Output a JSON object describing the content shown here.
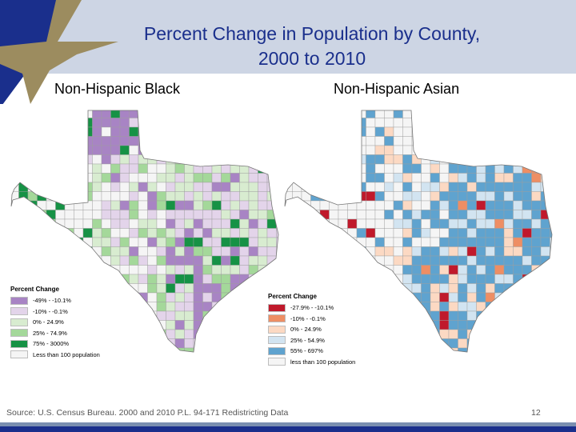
{
  "slide": {
    "title_line1": "Percent Change in Population by County,",
    "title_line2": "2000 to 2010",
    "page_number": "12",
    "source": "Source: U.S. Census Bureau. 2000 and 2010 P.L. 94-171 Redistricting Data"
  },
  "maps": [
    {
      "subtitle": "Non-Hispanic Black",
      "legend_title": "Percent Change",
      "legend": [
        {
          "label": "-49% - -10.1%",
          "color": "#a884c4"
        },
        {
          "label": "-10% - -0.1%",
          "color": "#e3d4ea"
        },
        {
          "label": "0% - 24.9%",
          "color": "#d8ecd0"
        },
        {
          "label": "25% - 74.9%",
          "color": "#a4d89a"
        },
        {
          "label": "75% - 3000%",
          "color": "#169245"
        },
        {
          "label": "Less than 100 population",
          "color": "#f5f5f5"
        }
      ]
    },
    {
      "subtitle": "Non-Hispanic Asian",
      "legend_title": "Percent Change",
      "legend": [
        {
          "label": "-27.9% - -10.1%",
          "color": "#c0192b"
        },
        {
          "label": "-10% - -0.1%",
          "color": "#ee8e64"
        },
        {
          "label": "0% - 24.9%",
          "color": "#fcd9c3"
        },
        {
          "label": "25% - 54.9%",
          "color": "#d2e4f1"
        },
        {
          "label": "55% - 697%",
          "color": "#5fa3cf"
        },
        {
          "label": "less than 100 population",
          "color": "#f5f5f5"
        }
      ]
    }
  ]
}
